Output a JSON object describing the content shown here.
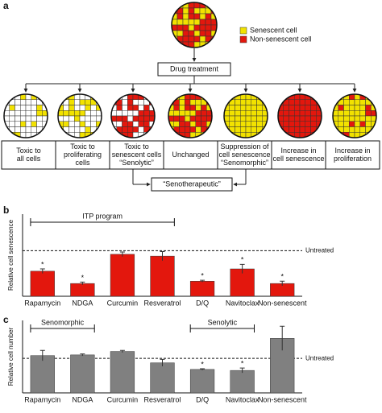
{
  "panel_labels": [
    "a",
    "b",
    "c"
  ],
  "diagram": {
    "legend": [
      {
        "label": "Senescent cell",
        "color": "#f2e200"
      },
      {
        "label": "Non-senescent cell",
        "color": "#e3170d"
      }
    ],
    "center_box": "Drug treatment",
    "outcomes": [
      [
        "Toxic to",
        "all cells"
      ],
      [
        "Toxic to",
        "proliferating",
        "cells"
      ],
      [
        "Toxic to",
        "senescent cells",
        "“Senolytic”"
      ],
      [
        "Unchanged"
      ],
      [
        "Suppression of",
        "cell senescence",
        "“Senomorphic”"
      ],
      [
        "Increase in",
        "cell senescence"
      ],
      [
        "Increase in",
        "proliferation"
      ]
    ],
    "result_box": "“Senotherapeutic”"
  },
  "chart_data": [
    {
      "type": "bar",
      "y_label": "Relative cell senescence",
      "color": "#e3170d",
      "categories": [
        "Rapamycin",
        "NDGA",
        "Curcumin",
        "Resveratrol",
        "D/Q",
        "Navitoclax",
        "Non-senescent"
      ],
      "values": [
        0.55,
        0.28,
        0.92,
        0.88,
        0.33,
        0.6,
        0.28
      ],
      "errors": [
        0.05,
        0.03,
        0.05,
        0.1,
        0.02,
        0.1,
        0.05
      ],
      "significance": [
        "*",
        "*",
        null,
        null,
        "*",
        "*",
        "*"
      ],
      "reference": {
        "value": 1,
        "label": "Untreated"
      },
      "brackets": [
        {
          "label": "ITP program",
          "from": 0,
          "to": 3
        }
      ],
      "ylim": [
        0,
        1.8
      ]
    },
    {
      "type": "bar",
      "y_label": "Relative cell number",
      "color": "#808080",
      "categories": [
        "Rapamycin",
        "NDGA",
        "Curcumin",
        "Resveratrol",
        "D/Q",
        "Navitoclax",
        "Non-senescent"
      ],
      "values": [
        1.08,
        1.1,
        1.2,
        0.87,
        0.68,
        0.65,
        1.58
      ],
      "errors": [
        0.15,
        0.03,
        0.03,
        0.1,
        0.02,
        0.07,
        0.35
      ],
      "significance": [
        null,
        null,
        null,
        null,
        "*",
        "*",
        null
      ],
      "reference": {
        "value": 1,
        "label": "Untreated"
      },
      "brackets": [
        {
          "label": "Senomorphic",
          "from": 0,
          "to": 1
        },
        {
          "label": "Senolytic",
          "from": 4,
          "to": 5
        }
      ],
      "ylim": [
        0,
        2.1
      ]
    }
  ]
}
